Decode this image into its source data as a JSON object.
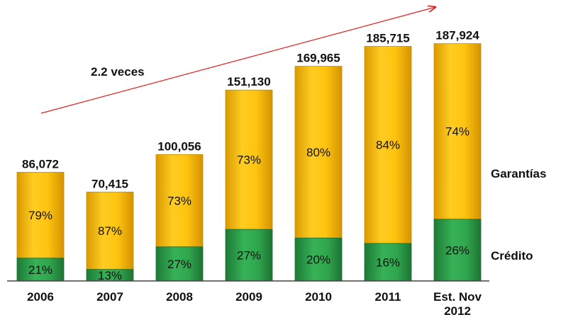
{
  "chart_data": {
    "type": "bar",
    "stacked": true,
    "categories": [
      "2006",
      "2007",
      "2008",
      "2009",
      "2010",
      "2011",
      "Est. Nov\n2012"
    ],
    "totals": [
      86072,
      70415,
      100056,
      151130,
      169965,
      185715,
      187924
    ],
    "total_labels": [
      "86,072",
      "70,415",
      "100,056",
      "151,130",
      "169,965",
      "185,715",
      "187,924"
    ],
    "series": [
      {
        "name": "Crédito",
        "color": "#2f9a4a",
        "share": [
          21,
          13,
          27,
          27,
          20,
          16,
          26
        ],
        "labels": [
          "21%",
          "13%",
          "27%",
          "27%",
          "20%",
          "16%",
          "26%"
        ]
      },
      {
        "name": "Garantías",
        "color": "#f2b705",
        "share": [
          79,
          87,
          73,
          73,
          80,
          84,
          74
        ],
        "labels": [
          "79%",
          "87%",
          "73%",
          "73%",
          "80%",
          "84%",
          "74%"
        ]
      }
    ],
    "ylim": [
      0,
      200000
    ],
    "grid": false,
    "legend_position": "right",
    "annotation": {
      "text": "2.2 veces",
      "arrow_color": "#e02020"
    }
  }
}
